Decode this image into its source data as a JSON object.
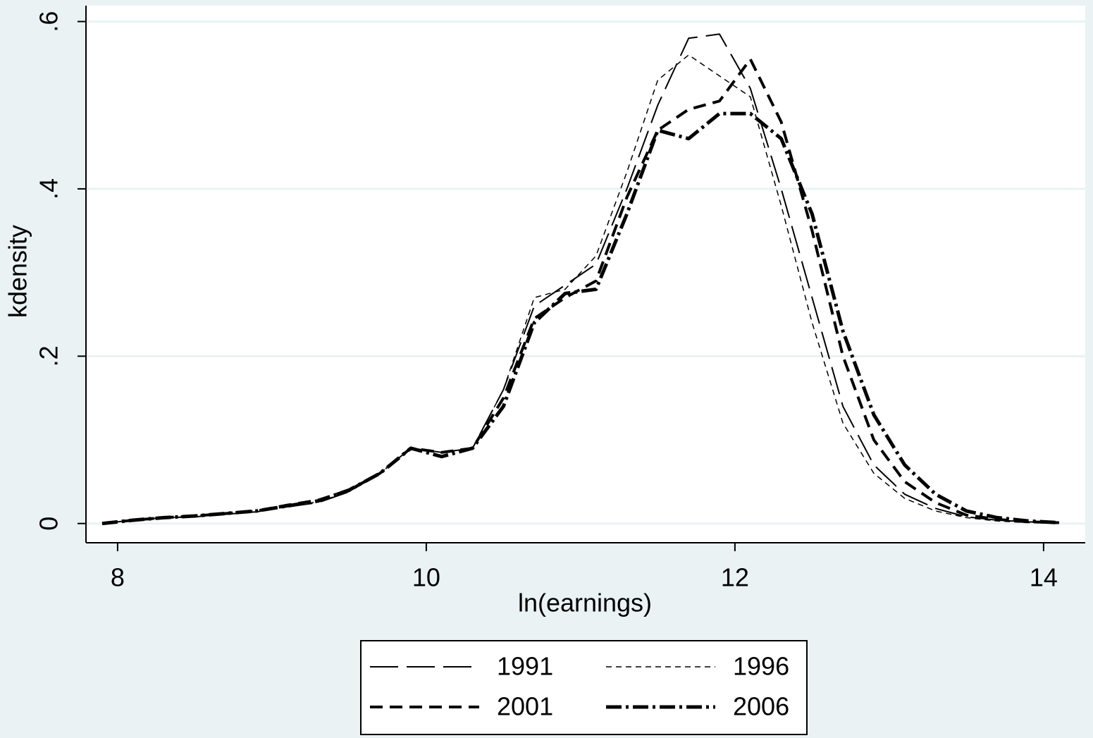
{
  "chart_data": {
    "type": "line",
    "xlabel": "ln(earnings)",
    "ylabel": "kdensity",
    "x": [
      7.9,
      8.1,
      8.3,
      8.5,
      8.7,
      8.9,
      9.1,
      9.3,
      9.5,
      9.7,
      9.9,
      10.1,
      10.3,
      10.5,
      10.7,
      10.9,
      11.1,
      11.3,
      11.5,
      11.7,
      11.9,
      12.1,
      12.3,
      12.5,
      12.7,
      12.9,
      13.1,
      13.3,
      13.5,
      13.7,
      13.9,
      14.1
    ],
    "series": [
      {
        "name": "1991",
        "color": "#000000",
        "dash": "long-dash",
        "width": 2,
        "values": [
          0,
          0.004,
          0.007,
          0.008,
          0.011,
          0.014,
          0.02,
          0.025,
          0.038,
          0.06,
          0.09,
          0.085,
          0.09,
          0.16,
          0.26,
          0.285,
          0.31,
          0.4,
          0.5,
          0.58,
          0.585,
          0.52,
          0.4,
          0.27,
          0.14,
          0.07,
          0.035,
          0.018,
          0.008,
          0.004,
          0.002,
          0.001
        ]
      },
      {
        "name": "1996",
        "color": "#000000",
        "dash": "short-dash",
        "width": 1.5,
        "values": [
          0,
          0.004,
          0.007,
          0.008,
          0.011,
          0.014,
          0.02,
          0.026,
          0.038,
          0.06,
          0.09,
          0.085,
          0.09,
          0.16,
          0.27,
          0.28,
          0.32,
          0.42,
          0.53,
          0.56,
          0.535,
          0.51,
          0.38,
          0.24,
          0.12,
          0.06,
          0.03,
          0.015,
          0.007,
          0.003,
          0.001,
          0.001
        ]
      },
      {
        "name": "2001",
        "color": "#000000",
        "dash": "dash",
        "width": 4,
        "values": [
          0,
          0.004,
          0.007,
          0.009,
          0.012,
          0.015,
          0.022,
          0.028,
          0.04,
          0.06,
          0.09,
          0.085,
          0.09,
          0.15,
          0.245,
          0.27,
          0.29,
          0.39,
          0.47,
          0.495,
          0.505,
          0.555,
          0.48,
          0.35,
          0.2,
          0.1,
          0.05,
          0.025,
          0.01,
          0.005,
          0.002,
          0.001
        ]
      },
      {
        "name": "2006",
        "color": "#000000",
        "dash": "dash-dot",
        "width": 5,
        "values": [
          0,
          0.004,
          0.007,
          0.009,
          0.012,
          0.015,
          0.021,
          0.027,
          0.04,
          0.06,
          0.09,
          0.08,
          0.09,
          0.14,
          0.24,
          0.275,
          0.28,
          0.37,
          0.47,
          0.46,
          0.49,
          0.49,
          0.46,
          0.37,
          0.23,
          0.13,
          0.07,
          0.035,
          0.015,
          0.007,
          0.003,
          0.001
        ]
      }
    ],
    "xlim": [
      7.795,
      14.27
    ],
    "xticks": [
      8,
      10,
      12,
      14
    ],
    "ylim": [
      -0.023,
      0.619
    ],
    "yticks": [
      0,
      {
        "value": 0.2,
        "label": ".2"
      },
      {
        "value": 0.4,
        "label": ".4"
      },
      {
        "value": 0.6,
        "label": ".6"
      }
    ],
    "grid": true
  }
}
